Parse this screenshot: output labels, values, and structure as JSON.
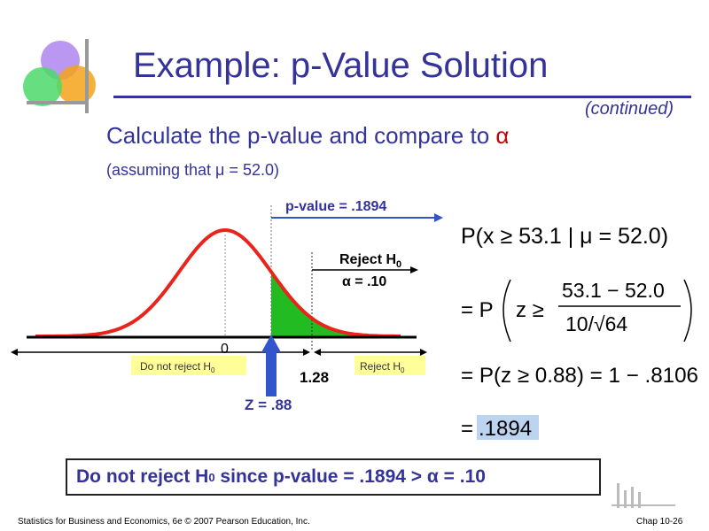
{
  "slide": {
    "title": "Example: p-Value Solution",
    "continued": "(continued)",
    "subtitle": "Calculate the p-value and compare to",
    "alpha_symbol": "α",
    "assumption": "(assuming that μ = 52.0)"
  },
  "diagram": {
    "p_value_label": "p-value = .1894",
    "reject_label": "Reject H",
    "reject_sub": "0",
    "alpha_label": "α = .10",
    "zero_label": "0",
    "critical_label": "1.28",
    "z_label": "Z = .88",
    "do_not_reject_box": "Do not reject H",
    "do_not_reject_sub": "0",
    "reject_box": "Reject H",
    "reject_box_sub": "0"
  },
  "formulas": {
    "line1": "P(x ≥ 53.1 | μ = 52.0)",
    "line2_prefix": "= P",
    "line2_z": "z ≥",
    "line2_num": "53.1 − 52.0",
    "line2_den": "10/√64",
    "line3": "= P(z ≥ 0.88) = 1 − .8106",
    "line4_eq": "=",
    "line4_val": ".1894"
  },
  "conclusion": {
    "text_a": "Do not reject H",
    "sub": "0",
    "text_b": " since p-value = .1894 > α = .10"
  },
  "footer": {
    "left": "Statistics for Business and Economics, 6e © 2007 Pearson Education, Inc.",
    "right": "Chap 10-26"
  },
  "colors": {
    "title": "#333399",
    "curve": "#e8241c",
    "reject_fill": "#22bb22",
    "axis": "#000000",
    "box_fill": "#ffff99",
    "highlight": "#bcd4f0",
    "arrow": "#3355cc"
  }
}
